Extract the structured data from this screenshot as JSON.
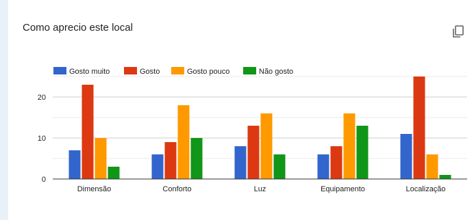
{
  "card": {
    "title": "Como aprecio este local",
    "copy_icon": "copy-icon"
  },
  "chart_data": {
    "type": "bar",
    "title": "",
    "xlabel": "",
    "ylabel": "",
    "categories": [
      "Dimensão",
      "Conforto",
      "Luz",
      "Equipamento",
      "Localização"
    ],
    "series": [
      {
        "name": "Gosto muito",
        "color": "#3366cc",
        "values": [
          7,
          6,
          8,
          6,
          11
        ]
      },
      {
        "name": "Gosto",
        "color": "#dc3912",
        "values": [
          23,
          9,
          13,
          8,
          25
        ]
      },
      {
        "name": "Gosto pouco",
        "color": "#ff9900",
        "values": [
          10,
          18,
          16,
          16,
          6
        ]
      },
      {
        "name": "Não gosto",
        "color": "#109618",
        "values": [
          3,
          10,
          6,
          13,
          1
        ]
      }
    ],
    "ylim": [
      0,
      25
    ],
    "yticks": [
      0,
      10,
      20
    ],
    "grid": true,
    "legend_position": "top-left"
  }
}
